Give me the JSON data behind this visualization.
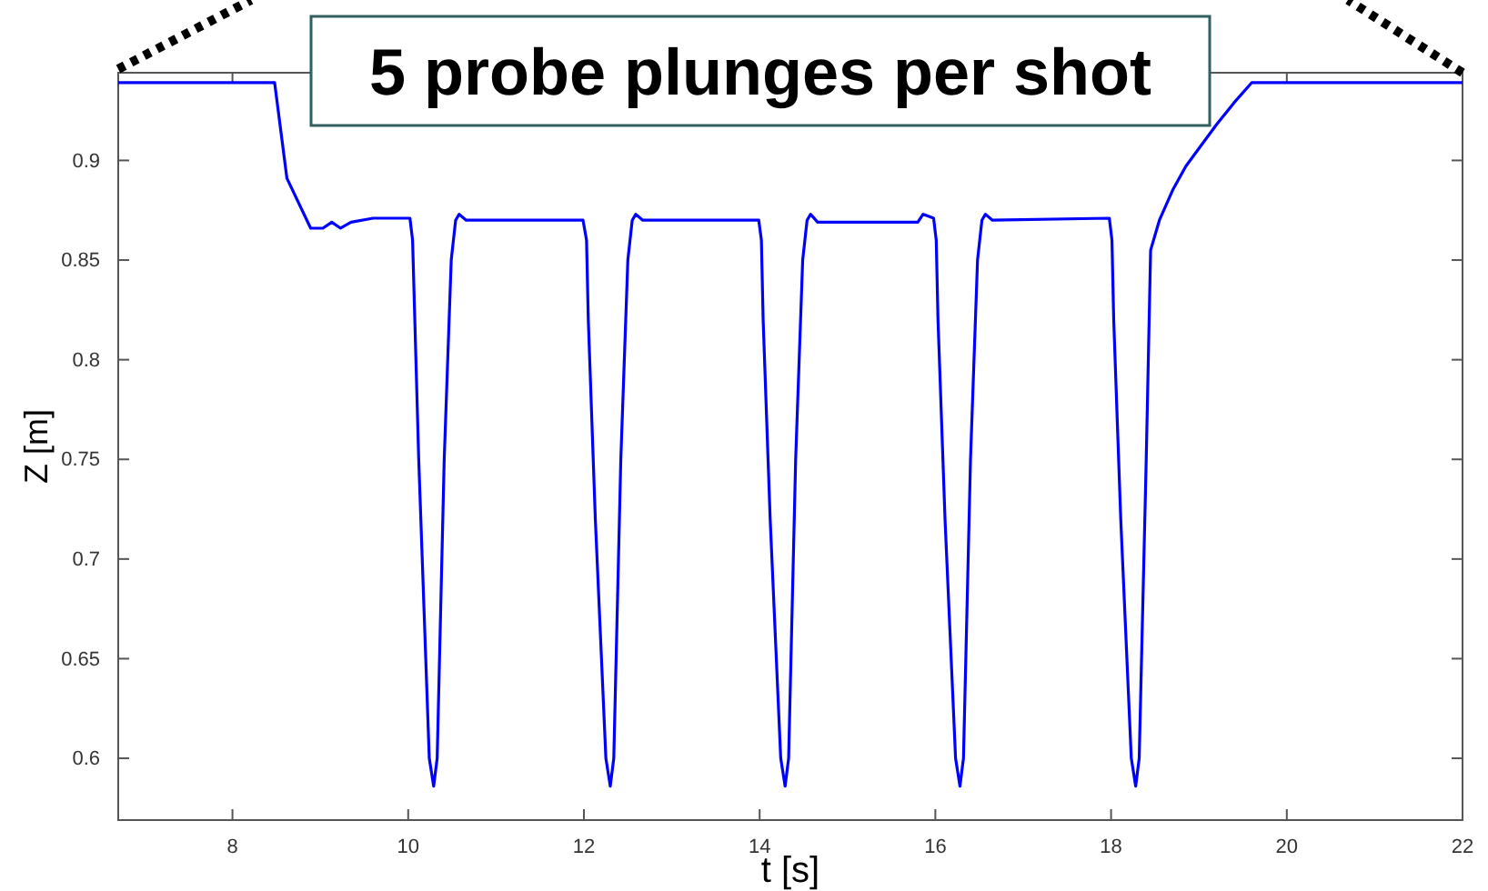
{
  "chart_data": {
    "type": "line",
    "title": "5 probe plunges per shot",
    "xlabel": "t [s]",
    "ylabel": "Z [m]",
    "x": [
      6.7,
      8.48,
      8.62,
      8.89,
      9.03,
      9.13,
      9.23,
      9.35,
      9.6,
      10.02,
      10.05,
      10.12,
      10.24,
      10.29,
      10.33,
      10.41,
      10.49,
      10.54,
      10.58,
      10.66,
      11.99,
      12.03,
      12.05,
      12.13,
      12.25,
      12.3,
      12.34,
      12.42,
      12.5,
      12.55,
      12.59,
      12.67,
      13.99,
      14.02,
      14.04,
      14.12,
      14.24,
      14.29,
      14.33,
      14.41,
      14.49,
      14.54,
      14.58,
      14.66,
      15.8,
      15.86,
      15.98,
      16.01,
      16.03,
      16.11,
      16.23,
      16.28,
      16.32,
      16.4,
      16.48,
      16.53,
      16.57,
      16.65,
      17.98,
      18.01,
      18.03,
      18.11,
      18.23,
      18.28,
      18.32,
      18.4,
      18.45,
      18.55,
      18.7,
      18.85,
      19.0,
      19.2,
      19.4,
      19.6,
      22
    ],
    "values": [
      0.939,
      0.939,
      0.891,
      0.866,
      0.866,
      0.869,
      0.866,
      0.869,
      0.871,
      0.871,
      0.86,
      0.75,
      0.6,
      0.586,
      0.6,
      0.75,
      0.85,
      0.87,
      0.873,
      0.87,
      0.87,
      0.86,
      0.82,
      0.72,
      0.6,
      0.586,
      0.6,
      0.75,
      0.85,
      0.87,
      0.873,
      0.87,
      0.87,
      0.86,
      0.82,
      0.72,
      0.6,
      0.586,
      0.6,
      0.75,
      0.85,
      0.87,
      0.873,
      0.869,
      0.869,
      0.873,
      0.871,
      0.86,
      0.82,
      0.72,
      0.6,
      0.586,
      0.6,
      0.75,
      0.85,
      0.87,
      0.873,
      0.87,
      0.871,
      0.86,
      0.82,
      0.72,
      0.6,
      0.586,
      0.6,
      0.75,
      0.855,
      0.87,
      0.885,
      0.897,
      0.906,
      0.918,
      0.929,
      0.939,
      0.939
    ],
    "color": "#0000ff",
    "xlim": [
      6.7,
      22
    ],
    "ylim": [
      0.569,
      0.944
    ],
    "xticks": [
      8,
      10,
      12,
      14,
      16,
      18,
      20,
      22
    ],
    "yticks": [
      0.6,
      0.65,
      0.7,
      0.75,
      0.8,
      0.85,
      0.9
    ],
    "grid": false,
    "marker": "none",
    "line_style": "solid"
  }
}
